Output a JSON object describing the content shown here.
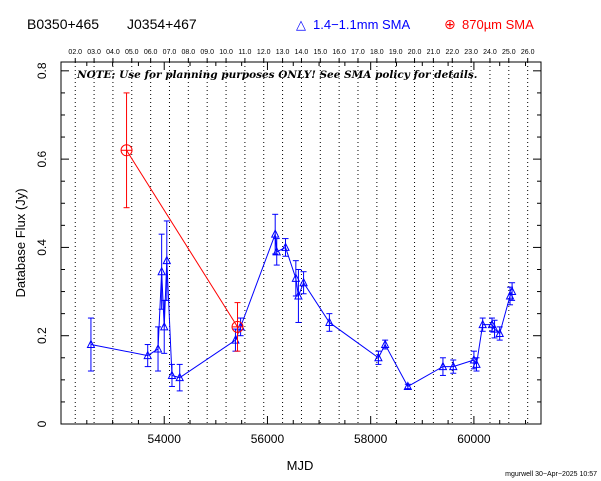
{
  "header": {
    "source_names": [
      "B0350+465",
      "J0354+467"
    ],
    "legend": [
      {
        "symbol": "△",
        "label": "1.4−1.1mm SMA",
        "color": "#0000ff"
      },
      {
        "symbol": "⊕",
        "label": "870µm SMA",
        "color": "#ff0000"
      }
    ]
  },
  "note": "NOTE: Use for planning purposes ONLY! See SMA policy for details.",
  "footer": {
    "credit": "mgurwell 30−Apr−2025 10:57"
  },
  "colors": {
    "blue_series": "#0000ff",
    "red_series": "#ff0000",
    "axes": "#000000"
  },
  "chart_data": {
    "type": "scatter",
    "xlabel": "MJD",
    "ylabel": "Database Flux (Jy)",
    "xlim": [
      52000,
      61300
    ],
    "ylim": [
      0,
      0.82
    ],
    "x_ticks": [
      54000,
      56000,
      58000,
      60000
    ],
    "x_tick_labels": [
      "54000",
      "56000",
      "58000",
      "60000"
    ],
    "y_ticks": [
      0,
      0.2,
      0.4,
      0.6,
      0.8
    ],
    "y_tick_labels": [
      "0",
      "0.2",
      "0.4",
      "0.6",
      "0.8"
    ],
    "top_axis": {
      "labels": [
        "02.0",
        "03.0",
        "04.0",
        "05.0",
        "06.0",
        "07.0",
        "08.0",
        "09.0",
        "10.0",
        "11.0",
        "12.0",
        "13.0",
        "14.0",
        "15.0",
        "16.0",
        "17.0",
        "18.0",
        "19.0",
        "20.0",
        "21.0",
        "22.0",
        "23.0",
        "24.0",
        "25.0",
        "26.0"
      ],
      "positions": [
        52276,
        52641,
        53006,
        53371,
        53737,
        54102,
        54467,
        54832,
        55198,
        55563,
        55928,
        56293,
        56659,
        57024,
        57389,
        57754,
        58120,
        58485,
        58850,
        59215,
        59581,
        59946,
        60311,
        60676,
        61042
      ]
    },
    "grid": "vertical dotted lines at each year tick",
    "series": [
      {
        "name": "1.4−1.1mm SMA",
        "color": "#0000ff",
        "marker": "triangle",
        "points": [
          {
            "x": 52580,
            "y": 0.18,
            "err": 0.06
          },
          {
            "x": 53680,
            "y": 0.155,
            "err": 0.025
          },
          {
            "x": 53880,
            "y": 0.17,
            "err": 0.05
          },
          {
            "x": 53950,
            "y": 0.345,
            "err": 0.085
          },
          {
            "x": 54000,
            "y": 0.22,
            "err": 0.06
          },
          {
            "x": 54050,
            "y": 0.37,
            "err": 0.09
          },
          {
            "x": 54150,
            "y": 0.11,
            "err": 0.025
          },
          {
            "x": 54300,
            "y": 0.105,
            "err": 0.03
          },
          {
            "x": 55380,
            "y": 0.19,
            "err": 0.025
          },
          {
            "x": 55480,
            "y": 0.22,
            "err": 0.02
          },
          {
            "x": 56150,
            "y": 0.43,
            "err": 0.045
          },
          {
            "x": 56180,
            "y": 0.39,
            "err": 0.03
          },
          {
            "x": 56350,
            "y": 0.4,
            "err": 0.02
          },
          {
            "x": 56550,
            "y": 0.33,
            "err": 0.04
          },
          {
            "x": 56600,
            "y": 0.29,
            "err": 0.06
          },
          {
            "x": 56700,
            "y": 0.32,
            "err": 0.025
          },
          {
            "x": 57200,
            "y": 0.23,
            "err": 0.02
          },
          {
            "x": 58150,
            "y": 0.15,
            "err": 0.015
          },
          {
            "x": 58280,
            "y": 0.18,
            "err": 0.01
          },
          {
            "x": 58720,
            "y": 0.085,
            "err": 0.005
          },
          {
            "x": 59400,
            "y": 0.13,
            "err": 0.02
          },
          {
            "x": 59600,
            "y": 0.13,
            "err": 0.015
          },
          {
            "x": 60000,
            "y": 0.145,
            "err": 0.02
          },
          {
            "x": 60050,
            "y": 0.135,
            "err": 0.015
          },
          {
            "x": 60170,
            "y": 0.225,
            "err": 0.015
          },
          {
            "x": 60350,
            "y": 0.225,
            "err": 0.015
          },
          {
            "x": 60400,
            "y": 0.215,
            "err": 0.02
          },
          {
            "x": 60500,
            "y": 0.205,
            "err": 0.015
          },
          {
            "x": 60700,
            "y": 0.29,
            "err": 0.02
          },
          {
            "x": 60740,
            "y": 0.3,
            "err": 0.02
          }
        ]
      },
      {
        "name": "870µm SMA",
        "color": "#ff0000",
        "marker": "circle-plus",
        "points": [
          {
            "x": 53270,
            "y": 0.62,
            "err": 0.13
          },
          {
            "x": 55420,
            "y": 0.22,
            "err": 0.055
          }
        ]
      }
    ]
  }
}
